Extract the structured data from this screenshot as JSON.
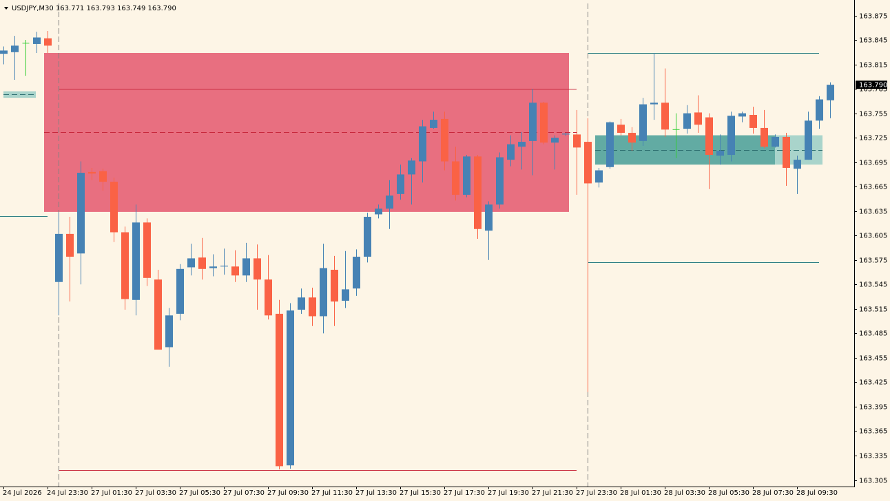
{
  "chart_data": {
    "type": "candlestick",
    "title": "USDJPY,M30 163.771 163.793 163.749 163.790",
    "up_color": "#4682b4",
    "down_color": "#fa6245",
    "doji_color": "#32cd32",
    "ylim": [
      163.297,
      163.894
    ],
    "yticks": [
      163.875,
      163.845,
      163.815,
      163.785,
      163.755,
      163.725,
      163.695,
      163.665,
      163.635,
      163.605,
      163.575,
      163.545,
      163.515,
      163.485,
      163.455,
      163.425,
      163.395,
      163.365,
      163.335,
      163.305
    ],
    "last_price": {
      "value": 163.79,
      "label": "163.790"
    },
    "categories": [
      "24 Jul 2026",
      null,
      null,
      null,
      "24 Jul 23:30",
      null,
      null,
      null,
      "27 Jul 01:30",
      null,
      null,
      null,
      "27 Jul 03:30",
      null,
      null,
      null,
      "27 Jul 05:30",
      null,
      null,
      null,
      "27 Jul 07:30",
      null,
      null,
      null,
      "27 Jul 09:30",
      null,
      null,
      null,
      "27 Jul 11:30",
      null,
      null,
      null,
      "27 Jul 13:30",
      null,
      null,
      null,
      "27 Jul 15:30",
      null,
      null,
      null,
      "27 Jul 17:30",
      null,
      null,
      null,
      "27 Jul 19:30",
      null,
      null,
      null,
      "27 Jul 21:30",
      null,
      null,
      null,
      "27 Jul 23:30",
      null,
      null,
      null,
      "28 Jul 01:30",
      null,
      null,
      null,
      "28 Jul 03:30",
      null,
      null,
      null,
      "28 Jul 05:30",
      null,
      null,
      null,
      "28 Jul 07:30",
      null,
      null,
      null,
      "28 Jul 09:30",
      null,
      null,
      null
    ],
    "open": [
      163.828,
      163.83,
      163.841,
      163.84,
      163.847,
      163.548,
      163.607,
      163.583,
      163.683,
      163.684,
      163.671,
      163.609,
      163.526,
      163.621,
      163.551,
      163.468,
      163.509,
      163.566,
      163.578,
      163.565,
      163.567,
      163.567,
      163.556,
      163.577,
      163.551,
      163.509,
      163.323,
      163.514,
      163.529,
      163.506,
      163.563,
      163.525,
      163.54,
      163.579,
      163.631,
      163.638,
      163.656,
      163.68,
      163.696,
      163.737,
      163.748,
      163.696,
      163.655,
      163.702,
      163.611,
      163.643,
      163.698,
      163.714,
      163.721,
      163.768,
      163.719,
      163.729,
      163.729,
      163.72,
      163.67,
      163.689,
      163.741,
      163.731,
      163.721,
      163.766,
      163.768,
      163.735,
      163.736,
      163.756,
      163.75,
      163.703,
      163.704,
      163.751,
      163.753,
      163.737,
      163.714,
      163.726,
      163.687,
      163.698,
      163.746,
      163.771
    ],
    "high": [
      163.837,
      163.85,
      163.845,
      163.855,
      163.856,
      163.633,
      163.628,
      163.696,
      163.688,
      163.687,
      163.676,
      163.616,
      163.643,
      163.626,
      163.563,
      163.516,
      163.57,
      163.595,
      163.602,
      163.582,
      163.589,
      163.587,
      163.596,
      163.594,
      163.581,
      163.526,
      163.522,
      163.54,
      163.541,
      163.595,
      163.58,
      163.586,
      163.588,
      163.633,
      163.643,
      163.673,
      163.692,
      163.7,
      163.747,
      163.757,
      163.757,
      163.714,
      163.704,
      163.704,
      163.647,
      163.707,
      163.728,
      163.732,
      163.785,
      163.769,
      163.728,
      163.731,
      163.759,
      163.749,
      163.688,
      163.745,
      163.748,
      163.738,
      163.774,
      163.829,
      163.81,
      163.755,
      163.765,
      163.777,
      163.755,
      163.729,
      163.757,
      163.757,
      163.763,
      163.759,
      163.729,
      163.731,
      163.703,
      163.757,
      163.776,
      163.793
    ],
    "low": [
      163.815,
      163.796,
      163.801,
      163.829,
      163.829,
      163.507,
      163.524,
      163.545,
      163.673,
      163.66,
      163.597,
      163.514,
      163.507,
      163.543,
      163.465,
      163.444,
      163.501,
      163.556,
      163.551,
      163.555,
      163.557,
      163.548,
      163.548,
      163.514,
      163.502,
      163.318,
      163.319,
      163.509,
      163.494,
      163.485,
      163.494,
      163.516,
      163.531,
      163.572,
      163.626,
      163.613,
      163.649,
      163.643,
      163.67,
      163.736,
      163.685,
      163.648,
      163.652,
      163.601,
      163.575,
      163.638,
      163.69,
      163.686,
      163.679,
      163.717,
      163.686,
      163.727,
      163.655,
      163.413,
      163.664,
      163.687,
      163.728,
      163.709,
      163.715,
      163.747,
      163.726,
      163.7,
      163.73,
      163.731,
      163.662,
      163.692,
      163.696,
      163.744,
      163.73,
      163.712,
      163.713,
      163.666,
      163.656,
      163.698,
      163.736,
      163.749
    ],
    "close": [
      163.832,
      163.838,
      163.841,
      163.848,
      163.838,
      163.607,
      163.579,
      163.682,
      163.681,
      163.671,
      163.609,
      163.527,
      163.621,
      163.553,
      163.465,
      163.507,
      163.564,
      163.577,
      163.564,
      163.567,
      163.568,
      163.556,
      163.577,
      163.551,
      163.507,
      163.322,
      163.513,
      163.529,
      163.506,
      163.565,
      163.524,
      163.539,
      163.579,
      163.628,
      163.638,
      163.654,
      163.68,
      163.697,
      163.739,
      163.747,
      163.696,
      163.655,
      163.702,
      163.613,
      163.643,
      163.701,
      163.717,
      163.72,
      163.768,
      163.719,
      163.725,
      163.73,
      163.713,
      163.669,
      163.685,
      163.744,
      163.731,
      163.719,
      163.766,
      163.768,
      163.735,
      163.735,
      163.755,
      163.741,
      163.704,
      163.709,
      163.752,
      163.755,
      163.737,
      163.714,
      163.726,
      163.688,
      163.698,
      163.746,
      163.772,
      163.79
    ],
    "zones": [
      {
        "top": 163.829,
        "bottom": 163.634,
        "color": "#e86f80"
      },
      {
        "top": 163.728,
        "bottom": 163.692,
        "color": "#62aba3"
      },
      {
        "top": 163.728,
        "bottom": 163.692,
        "color": "#a9d4cb"
      },
      {
        "top": 163.782,
        "bottom": 163.774,
        "color": "#a9d4cb"
      }
    ],
    "levels": [
      {
        "value": 163.785,
        "color": "#c8283c",
        "dashed": false
      },
      {
        "value": 163.732,
        "color": "#c8283c",
        "dashed": true
      },
      {
        "value": 163.317,
        "color": "#c8283c",
        "dashed": false
      },
      {
        "value": 163.829,
        "color": "#2e7f84",
        "dashed": false
      },
      {
        "value": 163.572,
        "color": "#2e7f84",
        "dashed": false
      },
      {
        "value": 163.71,
        "color": "#2e6f70",
        "dashed": true
      },
      {
        "value": 163.778,
        "color": "#2e6f70",
        "dashed": true
      },
      {
        "value": 163.629,
        "color": "#2e7f84",
        "dashed": false
      }
    ]
  }
}
